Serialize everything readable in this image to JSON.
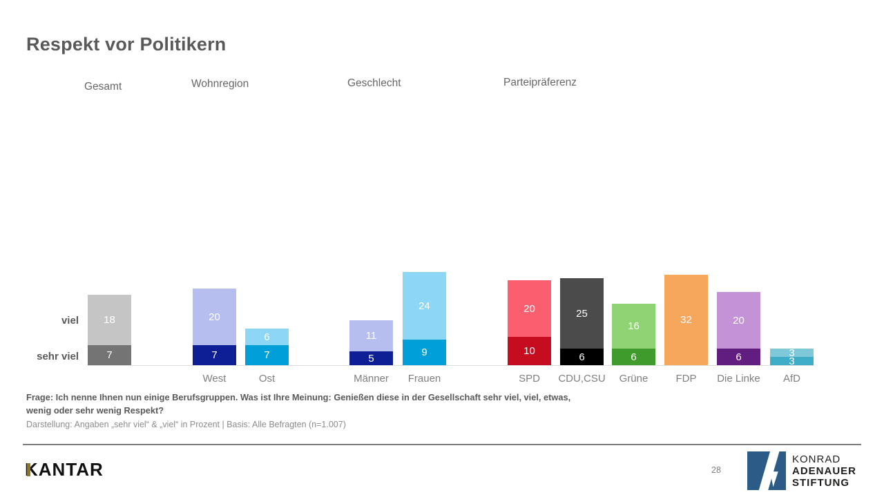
{
  "slide": {
    "title": "Respekt vor Politikern",
    "page_number": "28"
  },
  "chart_data": {
    "type": "bar",
    "stacked": true,
    "value_unit": "percent",
    "title": "Respekt vor Politikern",
    "row_labels": [
      "viel",
      "sehr viel"
    ],
    "legend_position": "left-row-labels",
    "grid": false,
    "groups": [
      {
        "label": "Gesamt",
        "bars": [
          {
            "category": "Gesamt",
            "show_category_label": false,
            "sehr_viel": 7,
            "viel": 18,
            "color_sehr_viel": "#747474",
            "color_viel": "#c5c5c5"
          }
        ]
      },
      {
        "label": "Wohnregion",
        "bars": [
          {
            "category": "West",
            "show_category_label": true,
            "sehr_viel": 7,
            "viel": 20,
            "color_sehr_viel": "#0e1f96",
            "color_viel": "#b5beee"
          },
          {
            "category": "Ost",
            "show_category_label": true,
            "sehr_viel": 7,
            "viel": 6,
            "color_sehr_viel": "#009fd9",
            "color_viel": "#8dd6f5"
          }
        ]
      },
      {
        "label": "Geschlecht",
        "bars": [
          {
            "category": "Männer",
            "show_category_label": true,
            "sehr_viel": 5,
            "viel": 11,
            "color_sehr_viel": "#0e1f96",
            "color_viel": "#b5beee"
          },
          {
            "category": "Frauen",
            "show_category_label": true,
            "sehr_viel": 9,
            "viel": 24,
            "color_sehr_viel": "#009fd9",
            "color_viel": "#8dd6f5"
          }
        ]
      },
      {
        "label": "Parteipräferenz",
        "bars": [
          {
            "category": "SPD",
            "show_category_label": true,
            "sehr_viel": 10,
            "viel": 20,
            "color_sehr_viel": "#c60d1f",
            "color_viel": "#fa5f6f"
          },
          {
            "category": "CDU,CSU",
            "show_category_label": true,
            "sehr_viel": 6,
            "viel": 25,
            "color_sehr_viel": "#000000",
            "color_viel": "#4b4b4b"
          },
          {
            "category": "Grüne",
            "show_category_label": true,
            "sehr_viel": 6,
            "viel": 16,
            "color_sehr_viel": "#3f9b2b",
            "color_viel": "#8fd374"
          },
          {
            "category": "FDP",
            "show_category_label": true,
            "sehr_viel": null,
            "viel": 32,
            "color_sehr_viel": null,
            "color_viel": "#f6a75c"
          },
          {
            "category": "Die Linke",
            "show_category_label": true,
            "sehr_viel": 6,
            "viel": 20,
            "color_sehr_viel": "#611e80",
            "color_viel": "#c492d6"
          },
          {
            "category": "AfD",
            "show_category_label": true,
            "sehr_viel": 3,
            "viel": 3,
            "color_sehr_viel": "#3fadc8",
            "color_viel": "#7ec8da"
          }
        ]
      }
    ]
  },
  "footnote": {
    "line1": "Frage: Ich nenne Ihnen nun einige Berufsgruppen. Was ist Ihre Meinung: Genießen diese in der Gesellschaft sehr viel, viel, etwas,",
    "line2": "wenig oder sehr wenig Respekt?",
    "line3": "Darstellung: Angaben „sehr viel“ & „viel“ in Prozent | Basis: Alle Befragten (n=1.007)"
  },
  "footer": {
    "kantar_logo_text": "KANTAR",
    "page_number": "28",
    "kas_logo": {
      "line1": "KONRAD",
      "line2": "ADENAUER",
      "line3": "STIFTUNG"
    },
    "kas_blue": "#2b5b86"
  }
}
